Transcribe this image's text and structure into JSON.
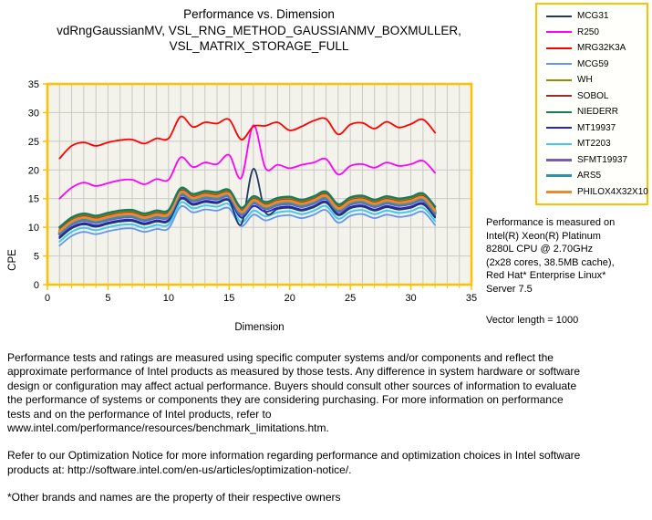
{
  "title": {
    "text": "Performance  vs.  Dimension\nvdRngGaussianMV,  VSL_RNG_METHOD_GAUSSIANMV_BOXMULLER,\nVSL_MATRIX_STORAGE_FULL"
  },
  "chart_data": {
    "type": "line",
    "title": "Performance vs. Dimension — vdRngGaussianMV, VSL_RNG_METHOD_GAUSSIANMV_BOXMULLER, VSL_MATRIX_STORAGE_FULL",
    "xlabel": "Dimension",
    "ylabel": "CPE",
    "xlim": [
      0,
      35
    ],
    "ylim": [
      0,
      35
    ],
    "x_ticks": [
      0,
      5,
      10,
      15,
      20,
      25,
      30,
      35
    ],
    "y_ticks": [
      0,
      5,
      10,
      15,
      20,
      25,
      30,
      35
    ],
    "x_minor_grid_step": 1,
    "y_grid_step": 5,
    "grid": true,
    "legend_position": "right",
    "plot_bg": "#F4F3EB",
    "frame_color": "#FFC000",
    "grid_color": "#C8C8C6",
    "x": [
      1,
      2,
      3,
      4,
      5,
      6,
      7,
      8,
      9,
      10,
      11,
      12,
      13,
      14,
      15,
      16,
      17,
      18,
      19,
      20,
      21,
      22,
      23,
      24,
      25,
      26,
      27,
      28,
      29,
      30,
      31,
      32
    ],
    "draw_order": [
      3,
      8,
      7,
      0,
      9,
      4,
      5,
      10,
      11,
      6,
      1,
      2
    ],
    "series": [
      {
        "name": "MCG31",
        "color": "#1F3864",
        "stroke_width": 1.8,
        "values": [
          8.1,
          9.8,
          10.5,
          10.1,
          10.6,
          11.0,
          11.1,
          10.5,
          11.0,
          11.1,
          14.9,
          13.9,
          14.4,
          14.2,
          14.6,
          10.5,
          20.2,
          12.6,
          13.2,
          13.4,
          12.9,
          13.5,
          14.3,
          12.1,
          13.3,
          13.6,
          12.9,
          13.5,
          13.1,
          13.4,
          14.0,
          11.7
        ]
      },
      {
        "name": "R250",
        "color": "#FF00FF",
        "stroke_width": 1.8,
        "values": [
          15.0,
          16.9,
          17.8,
          17.2,
          17.7,
          18.2,
          18.3,
          17.5,
          18.4,
          18.3,
          22.2,
          20.5,
          21.3,
          21.0,
          22.6,
          18.6,
          27.8,
          20.3,
          20.9,
          20.3,
          20.9,
          21.3,
          21.9,
          19.2,
          20.7,
          21.0,
          20.4,
          21.3,
          20.7,
          21.0,
          21.6,
          19.5
        ]
      },
      {
        "name": "MRG32K3A",
        "color": "#FF0000",
        "stroke_width": 1.8,
        "values": [
          22.0,
          24.2,
          24.8,
          24.2,
          24.8,
          25.2,
          25.3,
          24.6,
          25.5,
          25.5,
          29.3,
          27.5,
          28.3,
          28.1,
          28.8,
          25.3,
          27.6,
          27.7,
          28.3,
          26.9,
          27.6,
          28.6,
          28.9,
          26.2,
          27.9,
          28.2,
          27.2,
          28.4,
          27.4,
          28.0,
          28.8,
          26.5
        ]
      },
      {
        "name": "MCG59",
        "color": "#6495ED",
        "stroke_width": 1.8,
        "values": [
          6.8,
          8.5,
          9.2,
          8.8,
          9.3,
          9.7,
          9.8,
          9.2,
          9.7,
          9.8,
          13.6,
          12.6,
          13.1,
          12.9,
          13.3,
          10.2,
          12.2,
          11.2,
          11.9,
          12.1,
          11.6,
          12.2,
          13.0,
          10.8,
          12.0,
          12.3,
          11.6,
          12.2,
          11.8,
          12.1,
          12.7,
          10.4
        ]
      },
      {
        "name": "WH",
        "color": "#8F8F00",
        "stroke_width": 2,
        "values": [
          9.7,
          11.4,
          12.1,
          11.7,
          12.2,
          12.6,
          12.7,
          12.1,
          12.6,
          12.7,
          16.5,
          15.5,
          16.0,
          15.8,
          16.2,
          13.1,
          15.1,
          14.1,
          14.8,
          15.0,
          14.5,
          15.1,
          15.9,
          13.7,
          14.9,
          15.2,
          14.5,
          15.1,
          14.7,
          15.0,
          15.6,
          13.3
        ]
      },
      {
        "name": "SOBOL",
        "color": "#9E2B25",
        "stroke_width": 2,
        "values": [
          9.5,
          11.2,
          11.9,
          11.5,
          12.0,
          12.4,
          12.5,
          11.9,
          12.4,
          12.5,
          16.3,
          15.3,
          15.8,
          15.6,
          16.0,
          12.9,
          14.9,
          13.9,
          14.6,
          14.8,
          14.3,
          14.9,
          15.7,
          13.5,
          14.7,
          15.0,
          14.3,
          14.9,
          14.5,
          14.8,
          15.4,
          13.1
        ]
      },
      {
        "name": "NIEDERR",
        "color": "#1F7A5C",
        "stroke_width": 2.5,
        "values": [
          10.0,
          11.7,
          12.4,
          12.0,
          12.5,
          12.9,
          13.0,
          12.4,
          12.9,
          13.0,
          16.8,
          15.8,
          16.3,
          16.1,
          16.5,
          13.4,
          15.4,
          14.4,
          15.1,
          15.3,
          14.8,
          15.4,
          16.2,
          14.0,
          15.2,
          15.5,
          14.8,
          15.4,
          15.0,
          15.3,
          15.9,
          13.6
        ]
      },
      {
        "name": "MT19937",
        "color": "#2323D9",
        "stroke_width": 2,
        "values": [
          8.3,
          10.0,
          10.7,
          10.3,
          10.8,
          11.2,
          11.3,
          10.7,
          11.2,
          11.3,
          15.1,
          14.1,
          14.6,
          14.4,
          14.8,
          11.7,
          13.7,
          12.7,
          13.4,
          13.6,
          13.1,
          13.7,
          14.5,
          12.3,
          13.5,
          13.8,
          13.1,
          13.7,
          13.3,
          13.6,
          14.2,
          11.9
        ]
      },
      {
        "name": "MT2203",
        "color": "#3FC8F0",
        "stroke_width": 2,
        "values": [
          7.5,
          9.2,
          9.9,
          9.5,
          10.0,
          10.4,
          10.5,
          9.9,
          10.4,
          10.5,
          14.3,
          13.3,
          13.8,
          13.6,
          14.0,
          10.9,
          12.9,
          11.9,
          12.6,
          12.8,
          12.3,
          12.9,
          13.7,
          11.5,
          12.7,
          13.0,
          12.3,
          12.9,
          12.5,
          12.8,
          13.4,
          11.1
        ]
      },
      {
        "name": "SFMT19937",
        "color": "#7A5EA8",
        "stroke_width": 3,
        "values": [
          8.8,
          10.5,
          11.2,
          10.8,
          11.3,
          11.7,
          11.8,
          11.2,
          11.7,
          11.8,
          15.6,
          14.6,
          15.1,
          14.9,
          15.3,
          12.2,
          14.2,
          13.2,
          13.9,
          14.1,
          13.6,
          14.2,
          15.0,
          12.8,
          14.0,
          14.3,
          13.6,
          14.2,
          13.8,
          14.1,
          14.7,
          12.4
        ]
      },
      {
        "name": "ARS5",
        "color": "#2E93AE",
        "stroke_width": 3,
        "values": [
          9.0,
          10.7,
          11.4,
          11.0,
          11.5,
          11.9,
          12.0,
          11.4,
          11.9,
          12.0,
          15.8,
          14.8,
          15.3,
          15.1,
          15.5,
          12.4,
          14.4,
          13.4,
          14.1,
          14.3,
          13.8,
          14.4,
          15.2,
          13.0,
          14.2,
          14.5,
          13.8,
          14.4,
          14.0,
          14.3,
          14.9,
          12.6
        ]
      },
      {
        "name": "PHILOX4X32X10",
        "color": "#ED8733",
        "stroke_width": 3,
        "values": [
          9.3,
          11.0,
          11.7,
          11.3,
          11.8,
          12.2,
          12.3,
          11.7,
          12.2,
          12.3,
          16.1,
          15.1,
          15.6,
          15.4,
          15.8,
          12.7,
          14.7,
          13.7,
          14.4,
          14.6,
          14.1,
          14.7,
          15.5,
          13.3,
          14.5,
          14.8,
          14.1,
          14.7,
          14.3,
          14.6,
          15.2,
          12.9
        ]
      }
    ]
  },
  "notes": {
    "system": "Performance is measured on\nIntel(R) Xeon(R) Platinum\n8280L CPU @ 2.70GHz\n(2x28 cores, 38.5MB cache),\nRed Hat* Enterprise Linux*\nServer 7.5",
    "vector_length": "Vector length = 1000"
  },
  "footnotes": {
    "p1": "Performance tests and ratings are measured using specific computer systems and/or components and reflect the\napproximate performance of Intel products as measured by those tests. Any difference in system hardware or software\ndesign or configuration may affect actual performance. Buyers should consult other sources of information to evaluate\nthe performance of systems or components they are considering purchasing. For more information on performance\ntests and on the performance of Intel products, refer to\nwww.intel.com/performance/resources/benchmark_limitations.htm.",
    "p2": "Refer to our Optimization Notice for more information regarding performance and optimization choices in Intel software\nproducts at: http://software.intel.com/en-us/articles/optimization-notice/.",
    "p3": "*Other brands and names are the property of their respective owners"
  }
}
